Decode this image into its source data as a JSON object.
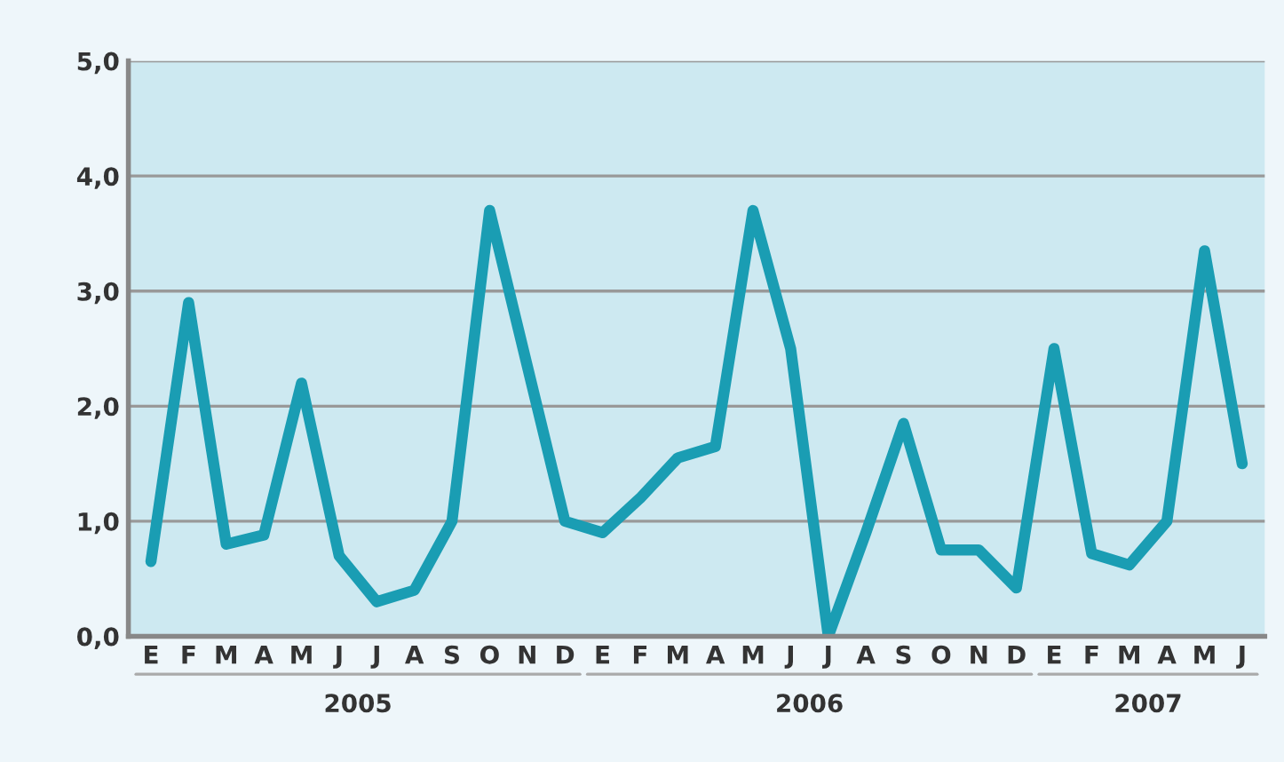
{
  "chart_data": {
    "type": "line",
    "categories": [
      "E",
      "F",
      "M",
      "A",
      "M",
      "J",
      "J",
      "A",
      "S",
      "O",
      "N",
      "D",
      "E",
      "F",
      "M",
      "A",
      "M",
      "J",
      "J",
      "A",
      "S",
      "O",
      "N",
      "D",
      "E",
      "F",
      "M",
      "A",
      "M",
      "J"
    ],
    "series": [
      {
        "color": "#1a9db3",
        "values": [
          0.65,
          2.9,
          0.8,
          0.88,
          2.2,
          0.7,
          0.3,
          0.4,
          1.0,
          3.7,
          2.35,
          1.0,
          0.9,
          1.2,
          1.55,
          1.65,
          3.7,
          2.5,
          0.0,
          0.9,
          1.85,
          0.75,
          0.75,
          0.42,
          2.5,
          0.72,
          0.62,
          1.0,
          3.35,
          1.5
        ]
      }
    ],
    "ylim": [
      0,
      5
    ],
    "yticks": [
      {
        "value": 0,
        "label": "0,0"
      },
      {
        "value": 1,
        "label": "1,0"
      },
      {
        "value": 2,
        "label": "2,0"
      },
      {
        "value": 3,
        "label": "3,0"
      },
      {
        "value": 4,
        "label": "4,0"
      },
      {
        "value": 5,
        "label": "5,0"
      }
    ],
    "grid": "y",
    "marker": "none",
    "line_style": "solid",
    "legend": false,
    "annotations": [
      "2005",
      "2006",
      "2007"
    ]
  }
}
